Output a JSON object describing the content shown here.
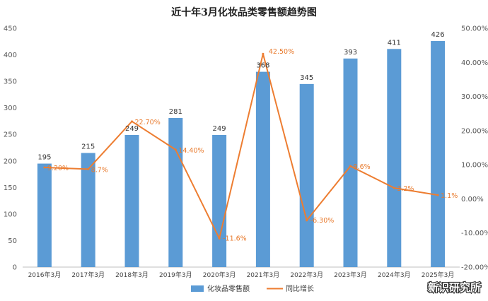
{
  "chart_data": {
    "type": "bar",
    "title": "近十年3月化妆品类零售额趋势图",
    "categories": [
      "2016年3月",
      "2017年3月",
      "2018年3月",
      "2019年3月",
      "2020年3月",
      "2021年3月",
      "2022年3月",
      "2023年3月",
      "2024年3月",
      "2025年3月"
    ],
    "series": [
      {
        "name": "化妆品零售额",
        "type": "bar",
        "axis": "left",
        "values": [
          195,
          215,
          249,
          281,
          249,
          368,
          345,
          393,
          411,
          426
        ],
        "labels": [
          "195",
          "215",
          "249",
          "281",
          "249",
          "368",
          "345",
          "393",
          "411",
          "426"
        ],
        "color": "#5b9bd5"
      },
      {
        "name": "同比增长",
        "type": "line",
        "axis": "right",
        "values": [
          9.2,
          8.7,
          22.7,
          14.4,
          -11.6,
          42.5,
          -6.3,
          9.6,
          3.2,
          1.1
        ],
        "labels": [
          "9.20%",
          "8.7%",
          "22.70%",
          "14.40%",
          "-11.6%",
          "42.50%",
          "-6.30%",
          "9.6%",
          "3.2%",
          "1.1%"
        ],
        "color": "#ed7d31"
      }
    ],
    "y_left": {
      "ylim": [
        0,
        450
      ],
      "ticks": [
        "0",
        "50",
        "100",
        "150",
        "200",
        "250",
        "300",
        "350",
        "400",
        "450"
      ]
    },
    "y_right": {
      "ylim": [
        -20,
        50
      ],
      "ticks": [
        "-20.00%",
        "-10.00%",
        "0.00%",
        "10.00%",
        "20.00%",
        "30.00%",
        "40.00%",
        "50.00%"
      ]
    },
    "legend": "bottom",
    "grid": false
  },
  "watermark": {
    "text": "新识研究所"
  }
}
